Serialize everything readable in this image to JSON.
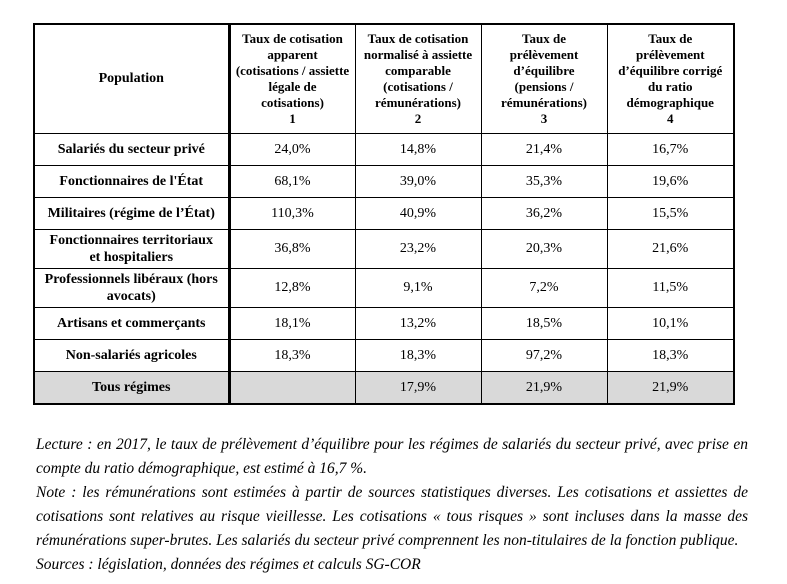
{
  "table": {
    "columns": [
      {
        "label": "Population",
        "number": ""
      },
      {
        "label": "Taux de cotisation apparent (cotisations / assiette légale de cotisations)",
        "number": "1"
      },
      {
        "label": "Taux de cotisation normalisé à assiette comparable (cotisations / rémunérations)",
        "number": "2"
      },
      {
        "label": "Taux de prélèvement d’équilibre (pensions / rémunérations)",
        "number": "3"
      },
      {
        "label": "Taux de prélèvement d’équilibre corrigé du ratio démographique",
        "number": "4"
      }
    ],
    "rows": [
      {
        "label": "Salariés du secteur privé",
        "values": [
          "24,0%",
          "14,8%",
          "21,4%",
          "16,7%"
        ],
        "highlighted": true,
        "total": false
      },
      {
        "label": "Fonctionnaires de l'État",
        "values": [
          "68,1%",
          "39,0%",
          "35,3%",
          "19,6%"
        ],
        "highlighted": false,
        "total": false
      },
      {
        "label": "Militaires (régime de l’État)",
        "values": [
          "110,3%",
          "40,9%",
          "36,2%",
          "15,5%"
        ],
        "highlighted": false,
        "total": false
      },
      {
        "label": "Fonctionnaires territoriaux et hospitaliers",
        "values": [
          "36,8%",
          "23,2%",
          "20,3%",
          "21,6%"
        ],
        "highlighted": false,
        "total": false
      },
      {
        "label": "Professionnels libéraux (hors avocats)",
        "values": [
          "12,8%",
          "9,1%",
          "7,2%",
          "11,5%"
        ],
        "highlighted": false,
        "total": false
      },
      {
        "label": "Artisans et commerçants",
        "values": [
          "18,1%",
          "13,2%",
          "18,5%",
          "10,1%"
        ],
        "highlighted": false,
        "total": false
      },
      {
        "label": "Non-salariés agricoles",
        "values": [
          "18,3%",
          "18,3%",
          "97,2%",
          "18,3%"
        ],
        "highlighted": false,
        "total": false
      },
      {
        "label": "Tous régimes",
        "values": [
          "",
          "17,9%",
          "21,9%",
          "21,9%"
        ],
        "highlighted": false,
        "total": true
      }
    ]
  },
  "notes": {
    "lecture": "Lecture : en 2017, le taux de prélèvement d’équilibre pour les régimes de salariés du secteur privé, avec prise en compte du ratio démographique, est estimé à 16,7 %.",
    "note": "Note : les rémunérations sont estimées à partir de sources statistiques diverses. Les cotisations et assiettes de cotisations sont relatives au risque vieillesse. Les cotisations « tous risques » sont incluses dans la masse des rémunérations super-brutes. Les salariés du secteur privé comprennent les non-titulaires de la fonction publique.",
    "sources": "Sources : législation, données des régimes et calculs SG-COR"
  },
  "colors": {
    "highlight_border": "#8c8c8c",
    "total_row_background": "#d9d9d9",
    "table_border": "#000000",
    "text": "#000000",
    "page_background": "#ffffff"
  }
}
